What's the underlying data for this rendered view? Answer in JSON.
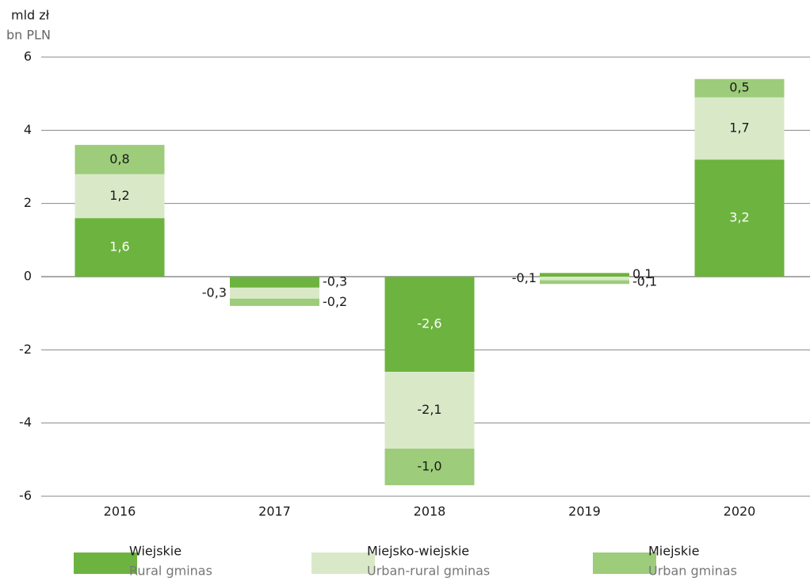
{
  "chart_data": {
    "type": "stacked_bar",
    "y_label": "mld zł",
    "y_label_en": "bn PLN",
    "categories": [
      "2016",
      "2017",
      "2018",
      "2019",
      "2020"
    ],
    "series": [
      {
        "name": "Wiejskie",
        "name_en": "Rural gminas",
        "color": "#6db33f",
        "values": [
          1.6,
          -0.3,
          -2.6,
          0.1,
          3.2
        ],
        "value_labels": [
          "1,6",
          "-0,3",
          "-2,6",
          "0,1",
          "3,2"
        ]
      },
      {
        "name": "Miejsko-wiejskie",
        "name_en": "Urban-rural gminas",
        "color": "#d9e9c8",
        "values": [
          1.2,
          -0.3,
          -2.1,
          -0.1,
          1.7
        ],
        "value_labels": [
          "1,2",
          "-0,3",
          "-2,1",
          "-0,1",
          "1,7"
        ]
      },
      {
        "name": "Miejskie",
        "name_en": "Urban gminas",
        "color": "#9dcc7a",
        "values": [
          0.8,
          -0.2,
          -1.0,
          -0.1,
          0.5
        ],
        "value_labels": [
          "0,8",
          "-0,2",
          "-1,0",
          "-0,1",
          "0,5"
        ]
      }
    ],
    "ylim": [
      -6,
      6
    ],
    "yticks": [
      -6,
      -4,
      -2,
      0,
      2,
      4,
      6
    ],
    "grid": true,
    "legend": "bottom"
  }
}
